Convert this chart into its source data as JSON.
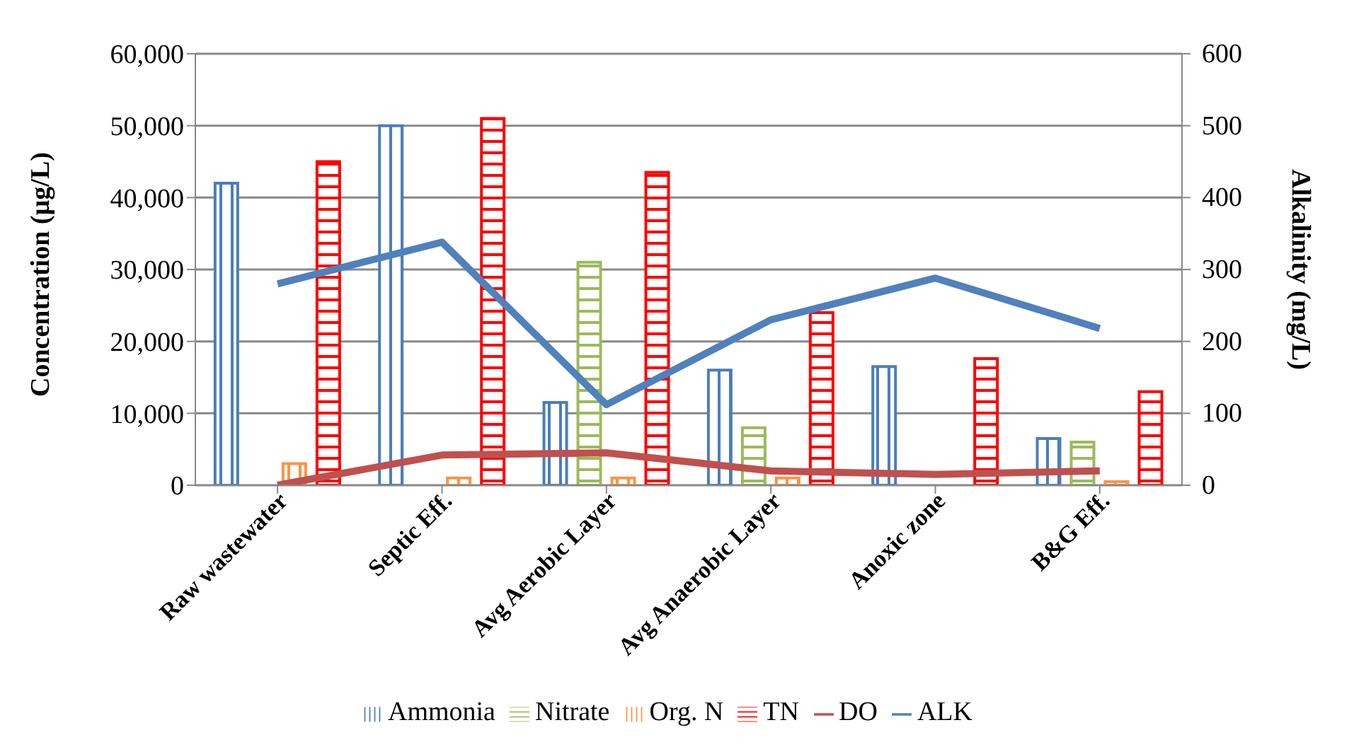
{
  "chart_data": {
    "type": "bar",
    "ylabel": "Concentration (µg/L)",
    "y2label": "Alkalinity (mg/L)",
    "categories": [
      "Raw wastewater",
      "Septic Eff.",
      "Avg Aerobic Layer",
      "Avg Anaerobic Layer",
      "Anoxic zone",
      "B&G Eff."
    ],
    "series": [
      {
        "name": "Ammonia",
        "color": "#4a7ebb",
        "values": [
          42000,
          50000,
          11500,
          16000,
          16500,
          6500
        ]
      },
      {
        "name": "Nitrate",
        "color": "#9bbb59",
        "values": [
          0,
          0,
          31000,
          8000,
          0,
          6000
        ]
      },
      {
        "name": "Org. N",
        "color": "#f79646",
        "values": [
          3000,
          1000,
          1000,
          1000,
          0,
          500
        ]
      },
      {
        "name": "TN",
        "color": "#ff0000",
        "values": [
          45000,
          51000,
          43500,
          24000,
          17600,
          13000
        ]
      },
      {
        "name": "DO",
        "type": "line",
        "axis": "y2",
        "color": "#c0504d",
        "values": [
          0,
          42,
          45,
          20,
          15,
          20
        ]
      },
      {
        "name": "ALK",
        "type": "line",
        "axis": "y2",
        "color": "#4f81bd",
        "values": [
          280,
          338,
          112,
          230,
          288,
          218
        ]
      }
    ],
    "ylim": [
      0,
      60000
    ],
    "yticks": [
      {
        "value": 0,
        "label": "0"
      },
      {
        "value": 10000,
        "label": "10,000"
      },
      {
        "value": 20000,
        "label": "20,000"
      },
      {
        "value": 30000,
        "label": "30,000"
      },
      {
        "value": 40000,
        "label": "40,000"
      },
      {
        "value": 50000,
        "label": "50,000"
      },
      {
        "value": 60000,
        "label": "60,000"
      }
    ],
    "y2lim": [
      0,
      600
    ],
    "y2ticks": [
      0,
      100,
      200,
      300,
      400,
      500,
      600
    ],
    "grid": "y",
    "legend": "bottom"
  }
}
